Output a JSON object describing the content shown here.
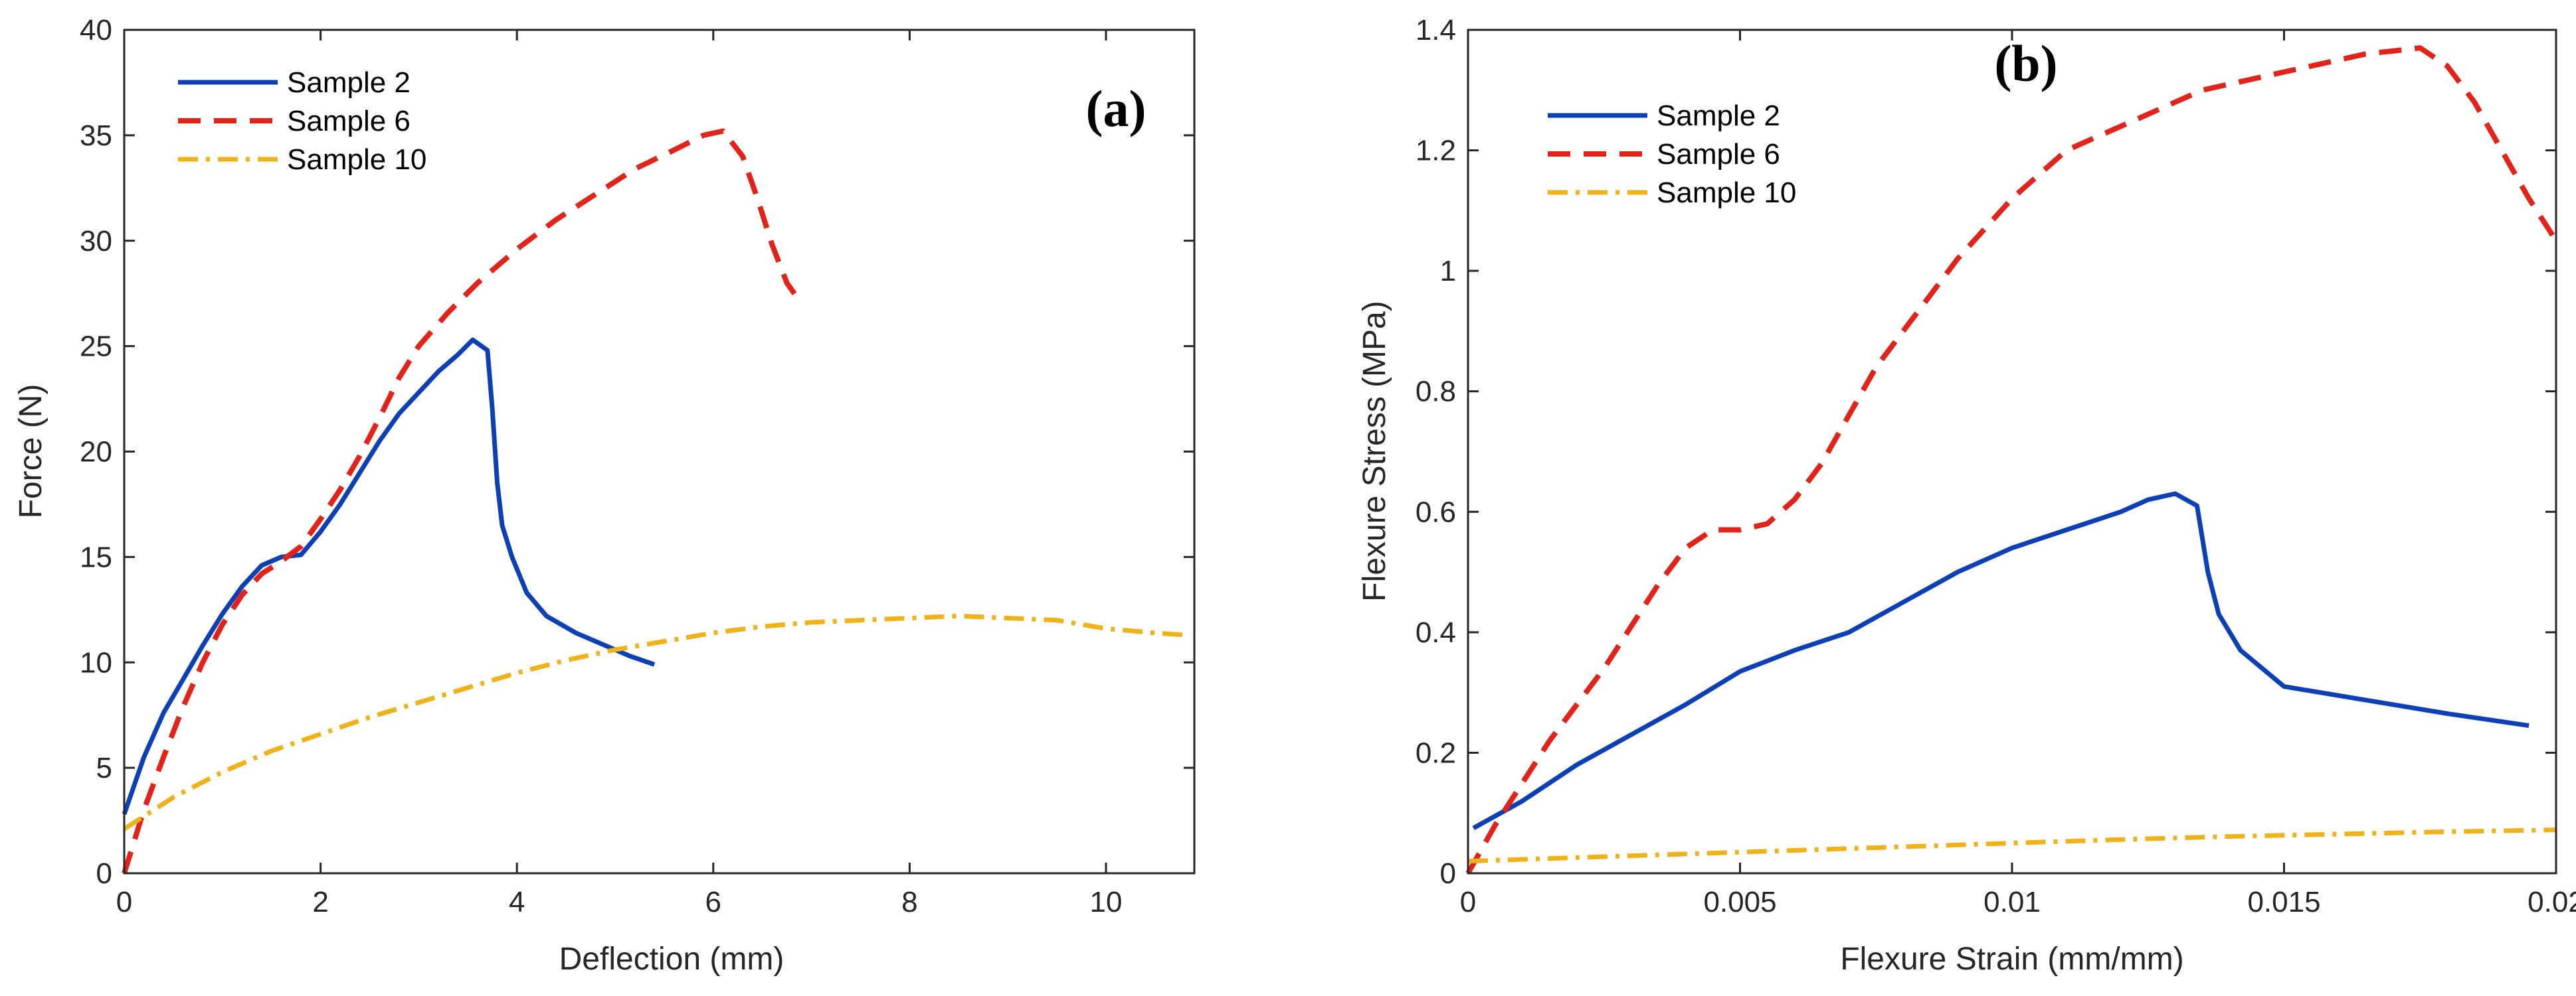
{
  "chart_data": [
    {
      "type": "line",
      "panel_label": "(a)",
      "xlabel": "Deflection (mm)",
      "ylabel": "Force (N)",
      "xlim": [
        0,
        10.9
      ],
      "ylim": [
        0,
        40
      ],
      "xticks": [
        0,
        2,
        4,
        6,
        8,
        10
      ],
      "yticks": [
        0,
        5,
        10,
        15,
        20,
        25,
        30,
        35,
        40
      ],
      "legend_position": "top-left",
      "series": [
        {
          "name": "Sample 2",
          "color": "#0d3fb5",
          "style": "solid",
          "points": [
            [
              0,
              2.8
            ],
            [
              0.2,
              5.5
            ],
            [
              0.4,
              7.6
            ],
            [
              0.6,
              9.2
            ],
            [
              0.8,
              10.8
            ],
            [
              1.0,
              12.3
            ],
            [
              1.2,
              13.6
            ],
            [
              1.4,
              14.6
            ],
            [
              1.6,
              15.0
            ],
            [
              1.8,
              15.1
            ],
            [
              2.0,
              16.2
            ],
            [
              2.2,
              17.5
            ],
            [
              2.4,
              19.0
            ],
            [
              2.6,
              20.5
            ],
            [
              2.8,
              21.8
            ],
            [
              3.0,
              22.8
            ],
            [
              3.2,
              23.8
            ],
            [
              3.4,
              24.6
            ],
            [
              3.55,
              25.3
            ],
            [
              3.7,
              24.8
            ],
            [
              3.75,
              22.0
            ],
            [
              3.8,
              18.5
            ],
            [
              3.85,
              16.5
            ],
            [
              3.95,
              15.0
            ],
            [
              4.1,
              13.3
            ],
            [
              4.3,
              12.2
            ],
            [
              4.6,
              11.4
            ],
            [
              4.9,
              10.8
            ],
            [
              5.15,
              10.3
            ],
            [
              5.4,
              9.9
            ]
          ]
        },
        {
          "name": "Sample 6",
          "color": "#e2231a",
          "style": "dashed",
          "points": [
            [
              0,
              0
            ],
            [
              0.2,
              3.0
            ],
            [
              0.4,
              5.5
            ],
            [
              0.6,
              7.9
            ],
            [
              0.8,
              10.0
            ],
            [
              1.0,
              11.8
            ],
            [
              1.2,
              13.2
            ],
            [
              1.4,
              14.2
            ],
            [
              1.6,
              14.8
            ],
            [
              1.8,
              15.5
            ],
            [
              2.0,
              16.8
            ],
            [
              2.2,
              18.2
            ],
            [
              2.4,
              19.8
            ],
            [
              2.6,
              21.6
            ],
            [
              2.8,
              23.5
            ],
            [
              3.0,
              25.0
            ],
            [
              3.3,
              26.6
            ],
            [
              3.6,
              28.0
            ],
            [
              4.0,
              29.6
            ],
            [
              4.4,
              31.0
            ],
            [
              4.8,
              32.2
            ],
            [
              5.2,
              33.4
            ],
            [
              5.6,
              34.3
            ],
            [
              5.9,
              35.0
            ],
            [
              6.1,
              35.2
            ],
            [
              6.3,
              34.0
            ],
            [
              6.45,
              32.0
            ],
            [
              6.6,
              29.8
            ],
            [
              6.75,
              28.0
            ],
            [
              6.9,
              27.0
            ]
          ]
        },
        {
          "name": "Sample 10",
          "color": "#f0b21b",
          "style": "dashdot",
          "points": [
            [
              0,
              2.1
            ],
            [
              0.5,
              3.6
            ],
            [
              1.0,
              4.8
            ],
            [
              1.5,
              5.8
            ],
            [
              2.0,
              6.6
            ],
            [
              2.5,
              7.4
            ],
            [
              3.0,
              8.1
            ],
            [
              3.5,
              8.8
            ],
            [
              4.0,
              9.5
            ],
            [
              4.5,
              10.1
            ],
            [
              5.0,
              10.6
            ],
            [
              5.5,
              11.0
            ],
            [
              6.0,
              11.4
            ],
            [
              6.5,
              11.7
            ],
            [
              7.0,
              11.9
            ],
            [
              7.5,
              12.0
            ],
            [
              8.0,
              12.1
            ],
            [
              8.5,
              12.2
            ],
            [
              9.0,
              12.1
            ],
            [
              9.5,
              12.0
            ],
            [
              10.0,
              11.6
            ],
            [
              10.5,
              11.4
            ],
            [
              10.8,
              11.3
            ]
          ]
        }
      ]
    },
    {
      "type": "line",
      "panel_label": "(b)",
      "xlabel": "Flexure Strain (mm/mm)",
      "ylabel": "Flexure Stress (MPa)",
      "xlim": [
        0,
        0.02
      ],
      "ylim": [
        0,
        1.4
      ],
      "xticks": [
        0,
        0.005,
        0.01,
        0.015,
        0.02
      ],
      "xtick_labels": [
        "0",
        "0.005",
        "0.01",
        "0.015",
        "0.02"
      ],
      "yticks": [
        0,
        0.2,
        0.4,
        0.6,
        0.8,
        1.0,
        1.2,
        1.4
      ],
      "ytick_labels": [
        "0",
        "0.2",
        "0.4",
        "0.6",
        "0.8",
        "1",
        "1.2",
        "1.4"
      ],
      "legend_position": "top-left",
      "series": [
        {
          "name": "Sample 2",
          "color": "#0d3fb5",
          "style": "solid",
          "points": [
            [
              0.0001,
              0.075
            ],
            [
              0.001,
              0.12
            ],
            [
              0.002,
              0.18
            ],
            [
              0.003,
              0.23
            ],
            [
              0.004,
              0.28
            ],
            [
              0.005,
              0.335
            ],
            [
              0.006,
              0.37
            ],
            [
              0.007,
              0.4
            ],
            [
              0.008,
              0.45
            ],
            [
              0.009,
              0.5
            ],
            [
              0.01,
              0.54
            ],
            [
              0.011,
              0.57
            ],
            [
              0.012,
              0.6
            ],
            [
              0.0125,
              0.62
            ],
            [
              0.013,
              0.63
            ],
            [
              0.0134,
              0.61
            ],
            [
              0.0136,
              0.5
            ],
            [
              0.0138,
              0.43
            ],
            [
              0.0142,
              0.37
            ],
            [
              0.015,
              0.31
            ],
            [
              0.016,
              0.295
            ],
            [
              0.017,
              0.28
            ],
            [
              0.018,
              0.265
            ],
            [
              0.0195,
              0.245
            ]
          ]
        },
        {
          "name": "Sample 6",
          "color": "#e2231a",
          "style": "dashed",
          "points": [
            [
              0,
              0
            ],
            [
              0.0005,
              0.08
            ],
            [
              0.001,
              0.15
            ],
            [
              0.0015,
              0.22
            ],
            [
              0.002,
              0.28
            ],
            [
              0.0025,
              0.34
            ],
            [
              0.003,
              0.41
            ],
            [
              0.0035,
              0.48
            ],
            [
              0.004,
              0.54
            ],
            [
              0.0045,
              0.57
            ],
            [
              0.005,
              0.57
            ],
            [
              0.0055,
              0.58
            ],
            [
              0.006,
              0.62
            ],
            [
              0.0065,
              0.68
            ],
            [
              0.007,
              0.76
            ],
            [
              0.0075,
              0.84
            ],
            [
              0.008,
              0.9
            ],
            [
              0.0085,
              0.96
            ],
            [
              0.009,
              1.02
            ],
            [
              0.0095,
              1.07
            ],
            [
              0.01,
              1.12
            ],
            [
              0.0105,
              1.16
            ],
            [
              0.011,
              1.2
            ],
            [
              0.0115,
              1.22
            ],
            [
              0.012,
              1.24
            ],
            [
              0.0125,
              1.26
            ],
            [
              0.013,
              1.28
            ],
            [
              0.0135,
              1.3
            ],
            [
              0.014,
              1.31
            ],
            [
              0.0145,
              1.32
            ],
            [
              0.015,
              1.33
            ],
            [
              0.0155,
              1.34
            ],
            [
              0.016,
              1.35
            ],
            [
              0.0165,
              1.36
            ],
            [
              0.017,
              1.365
            ],
            [
              0.0175,
              1.37
            ],
            [
              0.018,
              1.34
            ],
            [
              0.0185,
              1.28
            ],
            [
              0.019,
              1.2
            ],
            [
              0.0195,
              1.12
            ],
            [
              0.02,
              1.05
            ]
          ]
        },
        {
          "name": "Sample 10",
          "color": "#f0b21b",
          "style": "dashdot",
          "points": [
            [
              0,
              0.02
            ],
            [
              0.002,
              0.026
            ],
            [
              0.004,
              0.032
            ],
            [
              0.006,
              0.038
            ],
            [
              0.008,
              0.044
            ],
            [
              0.01,
              0.05
            ],
            [
              0.012,
              0.056
            ],
            [
              0.014,
              0.061
            ],
            [
              0.016,
              0.065
            ],
            [
              0.018,
              0.069
            ],
            [
              0.02,
              0.072
            ]
          ]
        }
      ]
    }
  ]
}
